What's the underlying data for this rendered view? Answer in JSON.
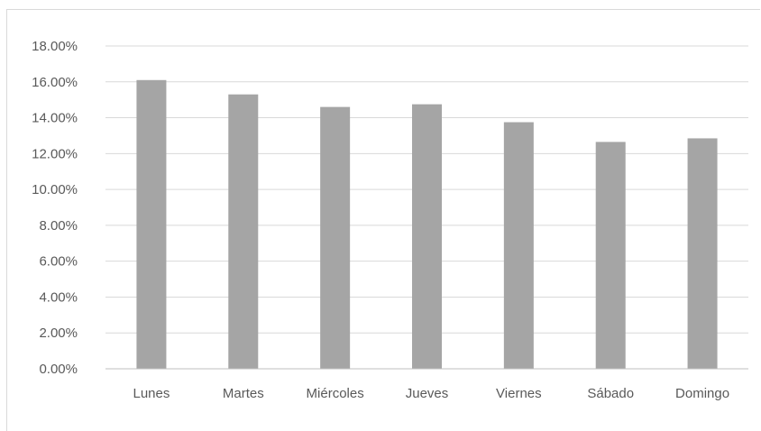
{
  "chart_data": {
    "type": "bar",
    "categories": [
      "Lunes",
      "Martes",
      "Miércoles",
      "Jueves",
      "Viernes",
      "Sábado",
      "Domingo"
    ],
    "series": [
      {
        "values": [
          16.1,
          15.3,
          14.6,
          14.75,
          13.75,
          12.65,
          12.85
        ],
        "color": "#a5a5a5"
      }
    ],
    "ylim": [
      0,
      18
    ],
    "yticks": [
      "0.00%",
      "2.00%",
      "4.00%",
      "6.00%",
      "8.00%",
      "10.00%",
      "12.00%",
      "14.00%",
      "16.00%",
      "18.00%"
    ],
    "ytick_values": [
      0,
      2,
      4,
      6,
      8,
      10,
      12,
      14,
      16,
      18
    ],
    "grid": true,
    "legend": "none",
    "title": "",
    "xlabel": "",
    "ylabel": "",
    "colors": {
      "bar": "#a5a5a5",
      "grid": "#d9d9d9",
      "axis": "#bfbfbf",
      "text": "#595959"
    }
  }
}
